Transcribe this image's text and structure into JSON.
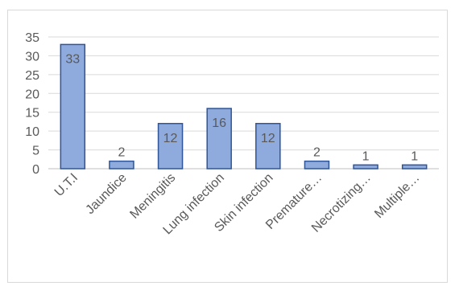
{
  "chart_data": {
    "type": "bar",
    "categories": [
      "U.T.I",
      "Jaundice",
      "Meningitis",
      "Lung infection",
      "Skin infection",
      "Premature…",
      "Necrotizing…",
      "Multiple…"
    ],
    "values": [
      33,
      2,
      12,
      16,
      12,
      2,
      1,
      1
    ],
    "ylim": [
      0,
      35
    ],
    "yticks": [
      0,
      5,
      10,
      15,
      20,
      25,
      30,
      35
    ],
    "grid": true,
    "legend": "none",
    "bar_fill": "#8faadc",
    "bar_stroke": "#2f5597",
    "grid_color": "#d9d9d9",
    "label_color": "#595959"
  }
}
